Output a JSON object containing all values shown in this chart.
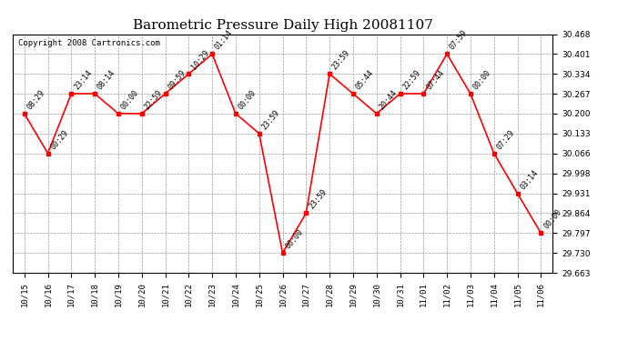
{
  "title": "Barometric Pressure Daily High 20081107",
  "copyright": "Copyright 2008 Cartronics.com",
  "x_labels": [
    "10/15",
    "10/16",
    "10/17",
    "10/18",
    "10/19",
    "10/20",
    "10/21",
    "10/22",
    "10/23",
    "10/24",
    "10/25",
    "10/26",
    "10/27",
    "10/28",
    "10/29",
    "10/30",
    "10/31",
    "11/01",
    "11/02",
    "11/03",
    "11/04",
    "11/05",
    "11/06"
  ],
  "y_values": [
    30.2,
    30.066,
    30.267,
    30.267,
    30.2,
    30.2,
    30.267,
    30.334,
    30.401,
    30.2,
    30.133,
    29.73,
    29.864,
    30.334,
    30.267,
    30.2,
    30.267,
    30.267,
    30.401,
    30.267,
    30.066,
    29.931,
    29.797
  ],
  "time_labels": [
    "08:29",
    "00:29",
    "23:14",
    "08:14",
    "00:00",
    "22:59",
    "09:59",
    "10:29",
    "01:14",
    "00:00",
    "23:59",
    "00:00",
    "23:59",
    "23:59",
    "05:44",
    "20:44",
    "22:59",
    "07:44",
    "07:59",
    "00:00",
    "07:29",
    "03:14",
    "00:00"
  ],
  "ylim_min": 29.663,
  "ylim_max": 30.468,
  "ytick_values": [
    29.663,
    29.73,
    29.797,
    29.864,
    29.931,
    29.998,
    30.066,
    30.133,
    30.2,
    30.267,
    30.334,
    30.401,
    30.468
  ],
  "line_color": "#FF0000",
  "marker_color": "#FF0000",
  "bg_color": "#FFFFFF",
  "grid_color": "#999999",
  "title_fontsize": 11,
  "label_fontsize": 6,
  "tick_fontsize": 6.5,
  "copyright_fontsize": 6.5
}
